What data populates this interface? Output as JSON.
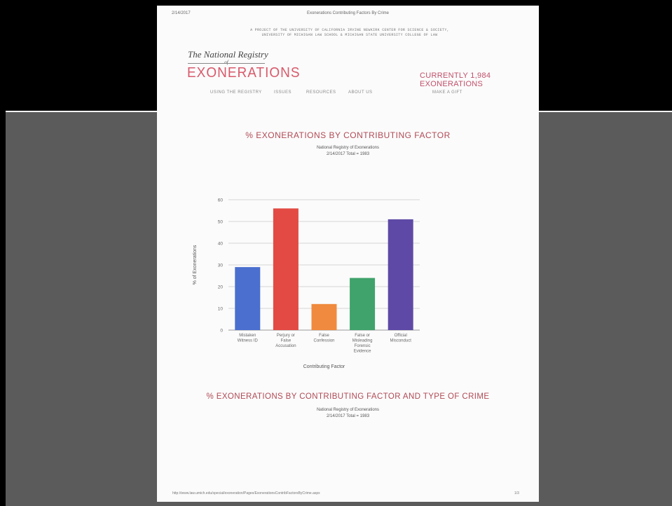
{
  "page_header": {
    "date": "2/14/2017",
    "title": "Exonerations Contributing Factors By Crime"
  },
  "project_line1": "A PROJECT OF THE UNIVERSITY OF CALIFORNIA IRVINE NEWKIRK CENTER FOR SCIENCE & SOCIETY,",
  "project_line2": "UNIVERSITY OF MICHIGAN LAW SCHOOL & MICHIGAN STATE UNIVERSITY COLLEGE OF LAW",
  "logo": {
    "top": "The National Registry",
    "of": "of",
    "main": "EXONERATIONS"
  },
  "currently": "CURRENTLY 1,984 EXONERATIONS",
  "nav": {
    "using": "USING THE REGISTRY",
    "issues": "ISSUES",
    "resources": "RESOURCES",
    "about": "ABOUT US",
    "gift": "MAKE A GIFT"
  },
  "chart1": {
    "heading": "% EXONERATIONS BY CONTRIBUTING FACTOR",
    "subtitle1": "National Registry of Exonerations",
    "subtitle2": "2/14/2017 Total = 1983"
  },
  "chart2": {
    "heading": "% EXONERATIONS BY CONTRIBUTING FACTOR AND TYPE OF CRIME",
    "subtitle1": "National Registry of Exonerations",
    "subtitle2": "2/14/2017 Total = 1983"
  },
  "footer": {
    "url": "http://www.law.umich.edu/special/exoneration/Pages/ExonerationsContribFactorsByCrime.aspx",
    "page": "1/3"
  },
  "chart_data": {
    "type": "bar",
    "categories": [
      [
        "Mistaken",
        "Witness ID"
      ],
      [
        "Perjury or",
        "False",
        "Accusation"
      ],
      [
        "False",
        "Confession"
      ],
      [
        "False or",
        "Misleading",
        "Forensic",
        "Evidence"
      ],
      [
        "Official",
        "Misconduct"
      ]
    ],
    "values": [
      29,
      56,
      12,
      24,
      51
    ],
    "colors": [
      "#4a6fcf",
      "#e24a43",
      "#f08a3e",
      "#3fa36b",
      "#5e4aa6"
    ],
    "xlabel": "Contributing Factor",
    "ylabel": "% of Exonerations",
    "ylim": [
      0,
      60
    ],
    "yticks": [
      0,
      10,
      20,
      30,
      40,
      50,
      60
    ],
    "grid": true
  }
}
